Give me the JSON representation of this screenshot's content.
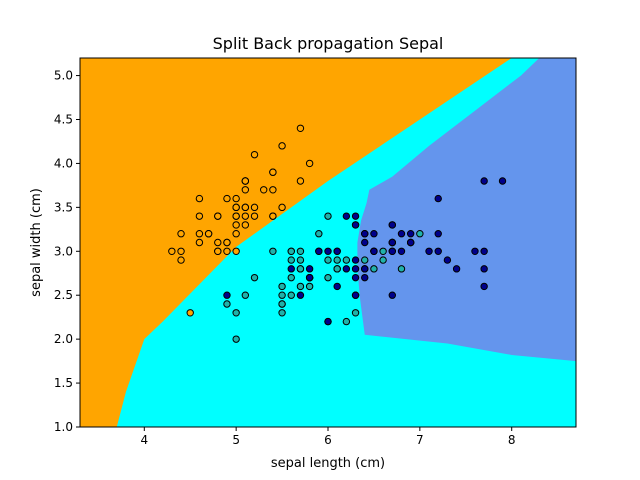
{
  "chart_data": {
    "type": "scatter",
    "title": "Split Back propagation Sepal",
    "xlabel": "sepal length (cm)",
    "ylabel": "sepal width (cm)",
    "xlim": [
      3.3,
      8.7
    ],
    "ylim": [
      1.0,
      5.2
    ],
    "x_ticks": [
      4,
      5,
      6,
      7,
      8
    ],
    "y_ticks": [
      1.0,
      1.5,
      2.0,
      2.5,
      3.0,
      3.5,
      4.0,
      4.5,
      5.0
    ],
    "x_tick_labels": [
      "4",
      "5",
      "6",
      "7",
      "8"
    ],
    "y_tick_labels": [
      "1.0",
      "1.5",
      "2.0",
      "2.5",
      "3.0",
      "3.5",
      "4.0",
      "4.5",
      "5.0"
    ],
    "grid": false,
    "legend": "none",
    "colors": {
      "region_class0": "#ffa500",
      "region_class1": "#00ffff",
      "region_class2": "#6495ed",
      "point_class0": "#ffa500",
      "point_class1": "#20b2aa",
      "point_class2": "#00008b",
      "point_edge": "#000000"
    },
    "decision_regions": [
      {
        "class": 0,
        "polygon": [
          [
            3.3,
            5.2
          ],
          [
            5.08,
            5.2
          ],
          [
            5.08,
            5.2
          ],
          [
            3.3,
            5.2
          ]
        ]
      }
    ],
    "series": [
      {
        "class": 0,
        "x": [
          5.1,
          4.9,
          4.7,
          4.6,
          5.0,
          5.4,
          4.6,
          5.0,
          4.4,
          4.9,
          5.4,
          4.8,
          4.8,
          4.3,
          5.8,
          5.7,
          5.4,
          5.1,
          5.7,
          5.1,
          5.4,
          5.1,
          4.6,
          5.1,
          4.8,
          5.0,
          5.0,
          5.2,
          5.2,
          4.7,
          4.8,
          5.4,
          5.2,
          5.5,
          4.9,
          5.0,
          5.5,
          4.9,
          4.4,
          5.1,
          5.0,
          4.5,
          4.4,
          5.0,
          5.1,
          4.8,
          5.1,
          4.6,
          5.3,
          5.0
        ],
        "y": [
          3.5,
          3.0,
          3.2,
          3.1,
          3.6,
          3.9,
          3.4,
          3.4,
          2.9,
          3.1,
          3.7,
          3.4,
          3.0,
          3.0,
          4.0,
          4.4,
          3.9,
          3.5,
          3.8,
          3.8,
          3.4,
          3.7,
          3.6,
          3.3,
          3.4,
          3.0,
          3.4,
          3.5,
          3.4,
          3.2,
          3.1,
          3.4,
          4.1,
          4.2,
          3.1,
          3.2,
          3.5,
          3.6,
          3.0,
          3.4,
          3.5,
          2.3,
          3.2,
          3.5,
          3.8,
          3.0,
          3.8,
          3.2,
          3.7,
          3.3
        ]
      },
      {
        "class": 1,
        "x": [
          7.0,
          6.4,
          6.9,
          5.5,
          6.5,
          5.7,
          6.3,
          4.9,
          6.6,
          5.2,
          5.0,
          5.9,
          6.0,
          6.1,
          5.6,
          6.7,
          5.6,
          5.8,
          6.2,
          5.6,
          5.9,
          6.1,
          6.3,
          6.1,
          6.4,
          6.6,
          6.8,
          6.7,
          6.0,
          5.7,
          5.5,
          5.5,
          5.8,
          6.0,
          5.4,
          6.0,
          6.7,
          6.3,
          5.6,
          5.5,
          5.5,
          6.1,
          5.8,
          5.0,
          5.6,
          5.7,
          5.7,
          6.2,
          5.1,
          5.7
        ],
        "y": [
          3.2,
          3.2,
          3.1,
          2.3,
          2.8,
          2.8,
          3.3,
          2.4,
          2.9,
          2.7,
          2.0,
          3.0,
          2.2,
          2.9,
          2.9,
          3.1,
          3.0,
          2.7,
          2.2,
          2.5,
          3.2,
          2.8,
          2.5,
          2.8,
          2.9,
          3.0,
          2.8,
          3.0,
          2.9,
          2.6,
          2.4,
          2.4,
          2.7,
          2.7,
          3.0,
          3.4,
          3.1,
          2.3,
          3.0,
          2.5,
          2.6,
          3.0,
          2.6,
          2.3,
          2.7,
          3.0,
          2.9,
          2.9,
          2.5,
          2.8
        ]
      },
      {
        "class": 2,
        "x": [
          6.3,
          5.8,
          7.1,
          6.3,
          6.5,
          7.6,
          4.9,
          7.3,
          6.7,
          7.2,
          6.5,
          6.4,
          6.8,
          5.7,
          5.8,
          6.4,
          6.5,
          7.7,
          7.7,
          6.0,
          6.9,
          5.6,
          7.7,
          6.3,
          6.7,
          7.2,
          6.2,
          6.1,
          6.4,
          7.2,
          7.4,
          7.9,
          6.4,
          6.3,
          6.1,
          7.7,
          6.3,
          6.4,
          6.0,
          6.9,
          6.7,
          6.9,
          5.8,
          6.8,
          6.7,
          6.7,
          6.3,
          6.5,
          6.2,
          5.9
        ],
        "y": [
          3.3,
          2.7,
          3.0,
          2.9,
          3.0,
          3.0,
          2.5,
          2.9,
          2.5,
          3.6,
          3.2,
          2.7,
          3.0,
          2.5,
          2.8,
          3.2,
          3.0,
          3.8,
          2.6,
          2.2,
          3.2,
          2.8,
          2.8,
          2.7,
          3.3,
          3.2,
          2.8,
          3.0,
          2.8,
          3.0,
          2.8,
          3.8,
          2.8,
          2.8,
          2.6,
          3.0,
          3.4,
          3.1,
          3.0,
          3.1,
          3.1,
          3.1,
          2.7,
          3.2,
          3.3,
          3.0,
          2.5,
          3.0,
          3.4,
          3.0
        ]
      }
    ]
  }
}
